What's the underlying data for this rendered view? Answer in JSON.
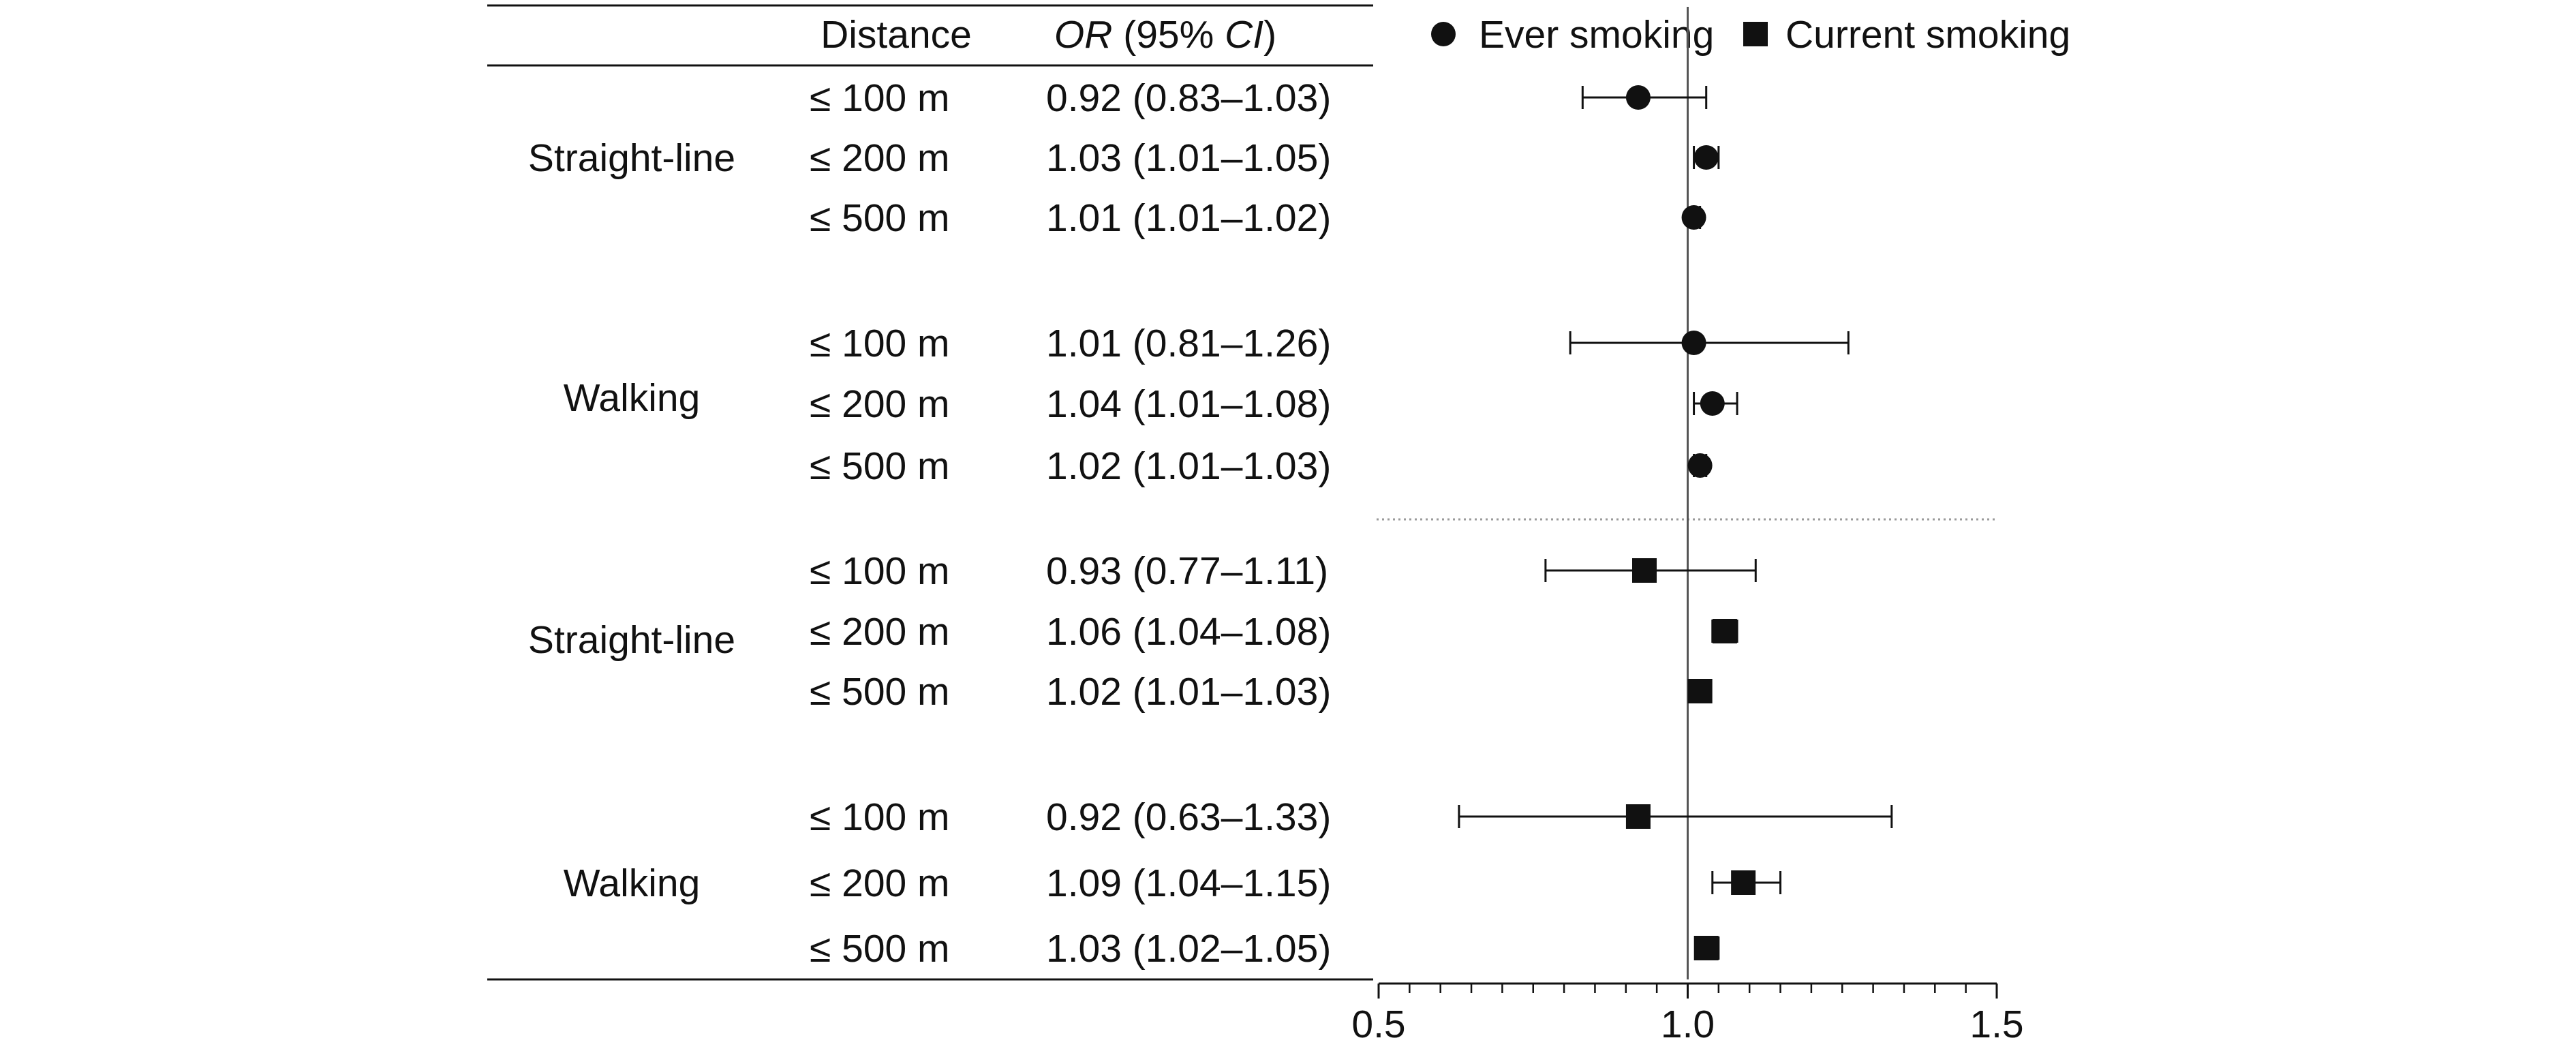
{
  "chart_data": {
    "type": "scatter",
    "title": "",
    "table": {
      "header_distance": "Distance",
      "header_or_italic": "OR",
      "header_ci_open": " (95% ",
      "header_ci_italic": "CI",
      "header_ci_close": ")"
    },
    "legend": {
      "placement": "top-right",
      "entries": [
        {
          "label": "Ever smoking",
          "marker": "circle"
        },
        {
          "label": "Current smoking",
          "marker": "square"
        }
      ]
    },
    "x_axis": {
      "scale": "linear",
      "range": [
        0.5,
        1.5
      ],
      "major_ticks": [
        {
          "value": 0.5,
          "label": "0.5"
        },
        {
          "value": 1.0,
          "label": "1.0"
        },
        {
          "value": 1.5,
          "label": "1.5"
        }
      ],
      "minor_step": 0.05,
      "reference_line": 1.0
    },
    "series": [
      {
        "name": "Ever smoking",
        "marker": "circle",
        "groups": [
          {
            "label": "Straight-line",
            "rows": [
              {
                "distance": "≤ 100 m",
                "or_text": "0.92 (0.83–1.03)",
                "or": 0.92,
                "lo": 0.83,
                "hi": 1.03
              },
              {
                "distance": "≤ 200 m",
                "or_text": "1.03 (1.01–1.05)",
                "or": 1.03,
                "lo": 1.01,
                "hi": 1.05
              },
              {
                "distance": "≤ 500 m",
                "or_text": "1.01 (1.01–1.02)",
                "or": 1.01,
                "lo": 1.01,
                "hi": 1.02
              }
            ]
          },
          {
            "label": "Walking",
            "rows": [
              {
                "distance": "≤ 100 m",
                "or_text": "1.01 (0.81–1.26)",
                "or": 1.01,
                "lo": 0.81,
                "hi": 1.26
              },
              {
                "distance": "≤ 200 m",
                "or_text": "1.04 (1.01–1.08)",
                "or": 1.04,
                "lo": 1.01,
                "hi": 1.08
              },
              {
                "distance": "≤ 500 m",
                "or_text": "1.02 (1.01–1.03)",
                "or": 1.02,
                "lo": 1.01,
                "hi": 1.03
              }
            ]
          }
        ]
      },
      {
        "name": "Current smoking",
        "marker": "square",
        "groups": [
          {
            "label": "Straight-line",
            "rows": [
              {
                "distance": "≤ 100 m",
                "or_text": "0.93 (0.77–1.11)",
                "or": 0.93,
                "lo": 0.77,
                "hi": 1.11
              },
              {
                "distance": "≤ 200 m",
                "or_text": "1.06 (1.04–1.08)",
                "or": 1.06,
                "lo": 1.04,
                "hi": 1.08
              },
              {
                "distance": "≤ 500 m",
                "or_text": "1.02 (1.01–1.03)",
                "or": 1.02,
                "lo": 1.01,
                "hi": 1.03
              }
            ]
          },
          {
            "label": "Walking",
            "rows": [
              {
                "distance": "≤ 100 m",
                "or_text": "0.92 (0.63–1.33)",
                "or": 0.92,
                "lo": 0.63,
                "hi": 1.33
              },
              {
                "distance": "≤ 200 m",
                "or_text": "1.09 (1.04–1.15)",
                "or": 1.09,
                "lo": 1.04,
                "hi": 1.15
              },
              {
                "distance": "≤ 500 m",
                "or_text": "1.03 (1.02–1.05)",
                "or": 1.03,
                "lo": 1.02,
                "hi": 1.05
              }
            ]
          }
        ]
      }
    ],
    "colors": {
      "ink": "#111111",
      "reference_line": "#555555",
      "separator": "#9a9a9a"
    }
  }
}
